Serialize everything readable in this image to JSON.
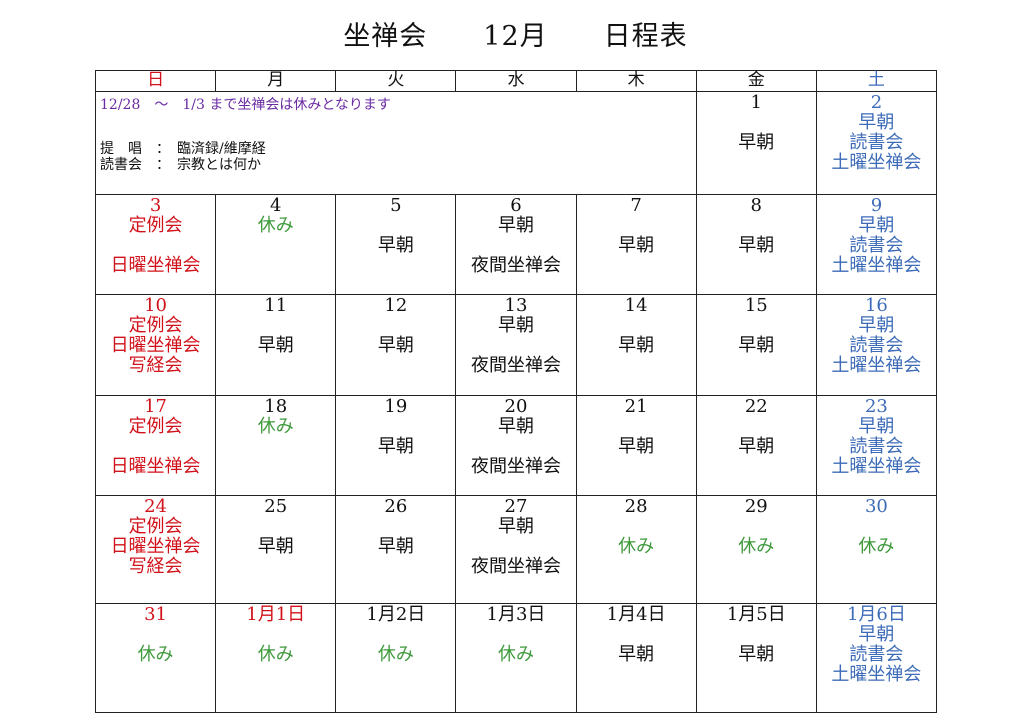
{
  "title": "坐禅会　　12月　　日程表",
  "weekdays": [
    "日",
    "月",
    "火",
    "水",
    "木",
    "金",
    "土"
  ],
  "notice": {
    "line1": "12/28　～　1/3 まで坐禅会は休みとなります",
    "line2": "提　唱　：　臨済録/維摩経",
    "line3": "読書会　：　宗教とは何か"
  },
  "week1": {
    "fri": {
      "num": "1",
      "e1": "早朝"
    },
    "sat": {
      "num": "2",
      "e1": "早朝",
      "e2": "読書会",
      "e3": "土曜坐禅会"
    }
  },
  "week2": {
    "sun": {
      "num": "3",
      "e1": "定例会",
      "e2": "日曜坐禅会"
    },
    "mon": {
      "num": "4",
      "e1": "休み"
    },
    "tue": {
      "num": "5",
      "e1": "早朝"
    },
    "wed": {
      "num": "6",
      "e1": "早朝",
      "e2": "夜間坐禅会"
    },
    "thu": {
      "num": "7",
      "e1": "早朝"
    },
    "fri": {
      "num": "8",
      "e1": "早朝"
    },
    "sat": {
      "num": "9",
      "e1": "早朝",
      "e2": "読書会",
      "e3": "土曜坐禅会"
    }
  },
  "week3": {
    "sun": {
      "num": "10",
      "e1": "定例会",
      "e2": "日曜坐禅会",
      "e3": "写経会"
    },
    "mon": {
      "num": "11",
      "e1": "早朝"
    },
    "tue": {
      "num": "12",
      "e1": "早朝"
    },
    "wed": {
      "num": "13",
      "e1": "早朝",
      "e2": "夜間坐禅会"
    },
    "thu": {
      "num": "14",
      "e1": "早朝"
    },
    "fri": {
      "num": "15",
      "e1": "早朝"
    },
    "sat": {
      "num": "16",
      "e1": "早朝",
      "e2": "読書会",
      "e3": "土曜坐禅会"
    }
  },
  "week4": {
    "sun": {
      "num": "17",
      "e1": "定例会",
      "e2": "日曜坐禅会"
    },
    "mon": {
      "num": "18",
      "e1": "休み"
    },
    "tue": {
      "num": "19",
      "e1": "早朝"
    },
    "wed": {
      "num": "20",
      "e1": "早朝",
      "e2": "夜間坐禅会"
    },
    "thu": {
      "num": "21",
      "e1": "早朝"
    },
    "fri": {
      "num": "22",
      "e1": "早朝"
    },
    "sat": {
      "num": "23",
      "e1": "早朝",
      "e2": "読書会",
      "e3": "土曜坐禅会"
    }
  },
  "week5": {
    "sun": {
      "num": "24",
      "e1": "定例会",
      "e2": "日曜坐禅会",
      "e3": "写経会"
    },
    "mon": {
      "num": "25",
      "e1": "早朝"
    },
    "tue": {
      "num": "26",
      "e1": "早朝"
    },
    "wed": {
      "num": "27",
      "e1": "早朝",
      "e2": "夜間坐禅会"
    },
    "thu": {
      "num": "28",
      "e1": "休み"
    },
    "fri": {
      "num": "29",
      "e1": "休み"
    },
    "sat": {
      "num": "30",
      "e1": "休み"
    }
  },
  "week6": {
    "sun": {
      "num": "31",
      "e1": "休み"
    },
    "mon": {
      "num": "1月1日",
      "e1": "休み"
    },
    "tue": {
      "num": "1月2日",
      "e1": "休み"
    },
    "wed": {
      "num": "1月3日",
      "e1": "休み"
    },
    "thu": {
      "num": "1月4日",
      "e1": "早朝"
    },
    "fri": {
      "num": "1月5日",
      "e1": "早朝"
    },
    "sat": {
      "num": "1月6日",
      "e1": "早朝",
      "e2": "読書会",
      "e3": "土曜坐禅会"
    }
  },
  "colors": {
    "sunday": "#d1121a",
    "saturday": "#3d6bb8",
    "holiday": "#3f9a3c",
    "notice": "#6a2aa3"
  }
}
